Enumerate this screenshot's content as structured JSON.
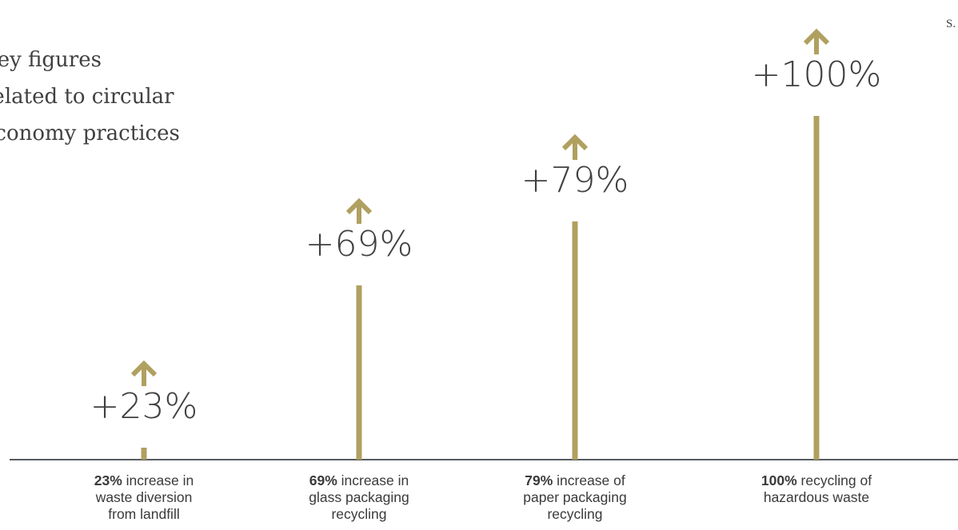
{
  "title_lines": [
    "Key figures",
    "related to circular",
    "economy practices"
  ],
  "corner_text": "S.",
  "colors": {
    "stem": "#B0A060",
    "axis": "#555a5f",
    "text": "#404040"
  },
  "chart_data": {
    "type": "bar",
    "title": "",
    "categories": [
      "increase in waste diversion from landfill",
      "increase in glass packaging recycling",
      "increase of paper packaging recycling",
      "recycling of hazardous waste"
    ],
    "values": [
      23,
      69,
      79,
      100
    ],
    "value_labels": [
      "+23%",
      "+69%",
      "+79%",
      "+100%"
    ],
    "ylim": [
      0,
      100
    ],
    "grid": false,
    "marker": "up-arrow-icon",
    "descriptions": [
      {
        "bold": "23%",
        "lines": [
          "increase in",
          "waste diversion",
          "from landfill"
        ]
      },
      {
        "bold": "69%",
        "lines": [
          "increase in",
          "glass packaging",
          "recycling"
        ]
      },
      {
        "bold": "79%",
        "lines": [
          "increase of",
          "paper packaging",
          "recycling"
        ]
      },
      {
        "bold": "100%",
        "lines": [
          "recycling of",
          "hazardous waste"
        ]
      }
    ]
  }
}
